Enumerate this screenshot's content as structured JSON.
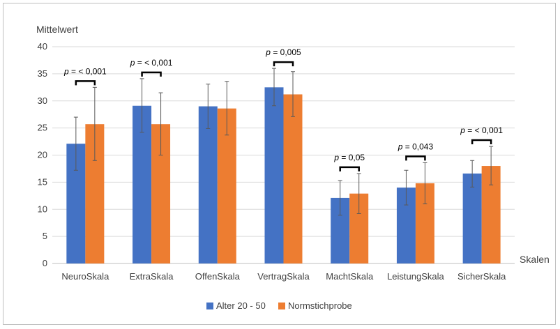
{
  "chart_data": {
    "type": "bar",
    "ylabel": "Mittelwert",
    "xlabel": "Skalen",
    "ylim": [
      0,
      40
    ],
    "yticks": [
      0,
      5,
      10,
      15,
      20,
      25,
      30,
      35,
      40
    ],
    "grid": true,
    "legend": "bottom",
    "categories": [
      "NeuroSkala",
      "ExtraSkala",
      "OffenSkala",
      "VertragSkala",
      "MachtSkala",
      "LeistungSkala",
      "SicherSkala"
    ],
    "series": [
      {
        "name": "Alter 20 - 50",
        "color": "#4472c4",
        "values": [
          22.1,
          29.1,
          29.0,
          32.5,
          12.1,
          14.0,
          16.6
        ],
        "error_low": [
          17.2,
          24.2,
          24.9,
          29.1,
          8.9,
          10.8,
          14.1
        ],
        "error_high": [
          27.0,
          34.1,
          33.1,
          36.0,
          15.3,
          17.2,
          19.0
        ]
      },
      {
        "name": "Normstichprobe",
        "color": "#ed7d31",
        "values": [
          25.7,
          25.7,
          28.6,
          31.2,
          12.9,
          14.8,
          18.0
        ],
        "error_low": [
          19.0,
          20.0,
          23.7,
          27.1,
          9.2,
          11.0,
          14.5
        ],
        "error_high": [
          32.5,
          31.5,
          33.6,
          35.4,
          16.6,
          18.6,
          21.6
        ]
      }
    ],
    "annotations": [
      {
        "category": "NeuroSkala",
        "text": "p = < 0,001"
      },
      {
        "category": "ExtraSkala",
        "text": "p = < 0,001"
      },
      {
        "category": "VertragSkala",
        "text": "p = 0,005"
      },
      {
        "category": "MachtSkala",
        "text": "p = 0,05"
      },
      {
        "category": "LeistungSkala",
        "text": "p = 0,043"
      },
      {
        "category": "SicherSkala",
        "text": "p = < 0,001"
      }
    ]
  }
}
